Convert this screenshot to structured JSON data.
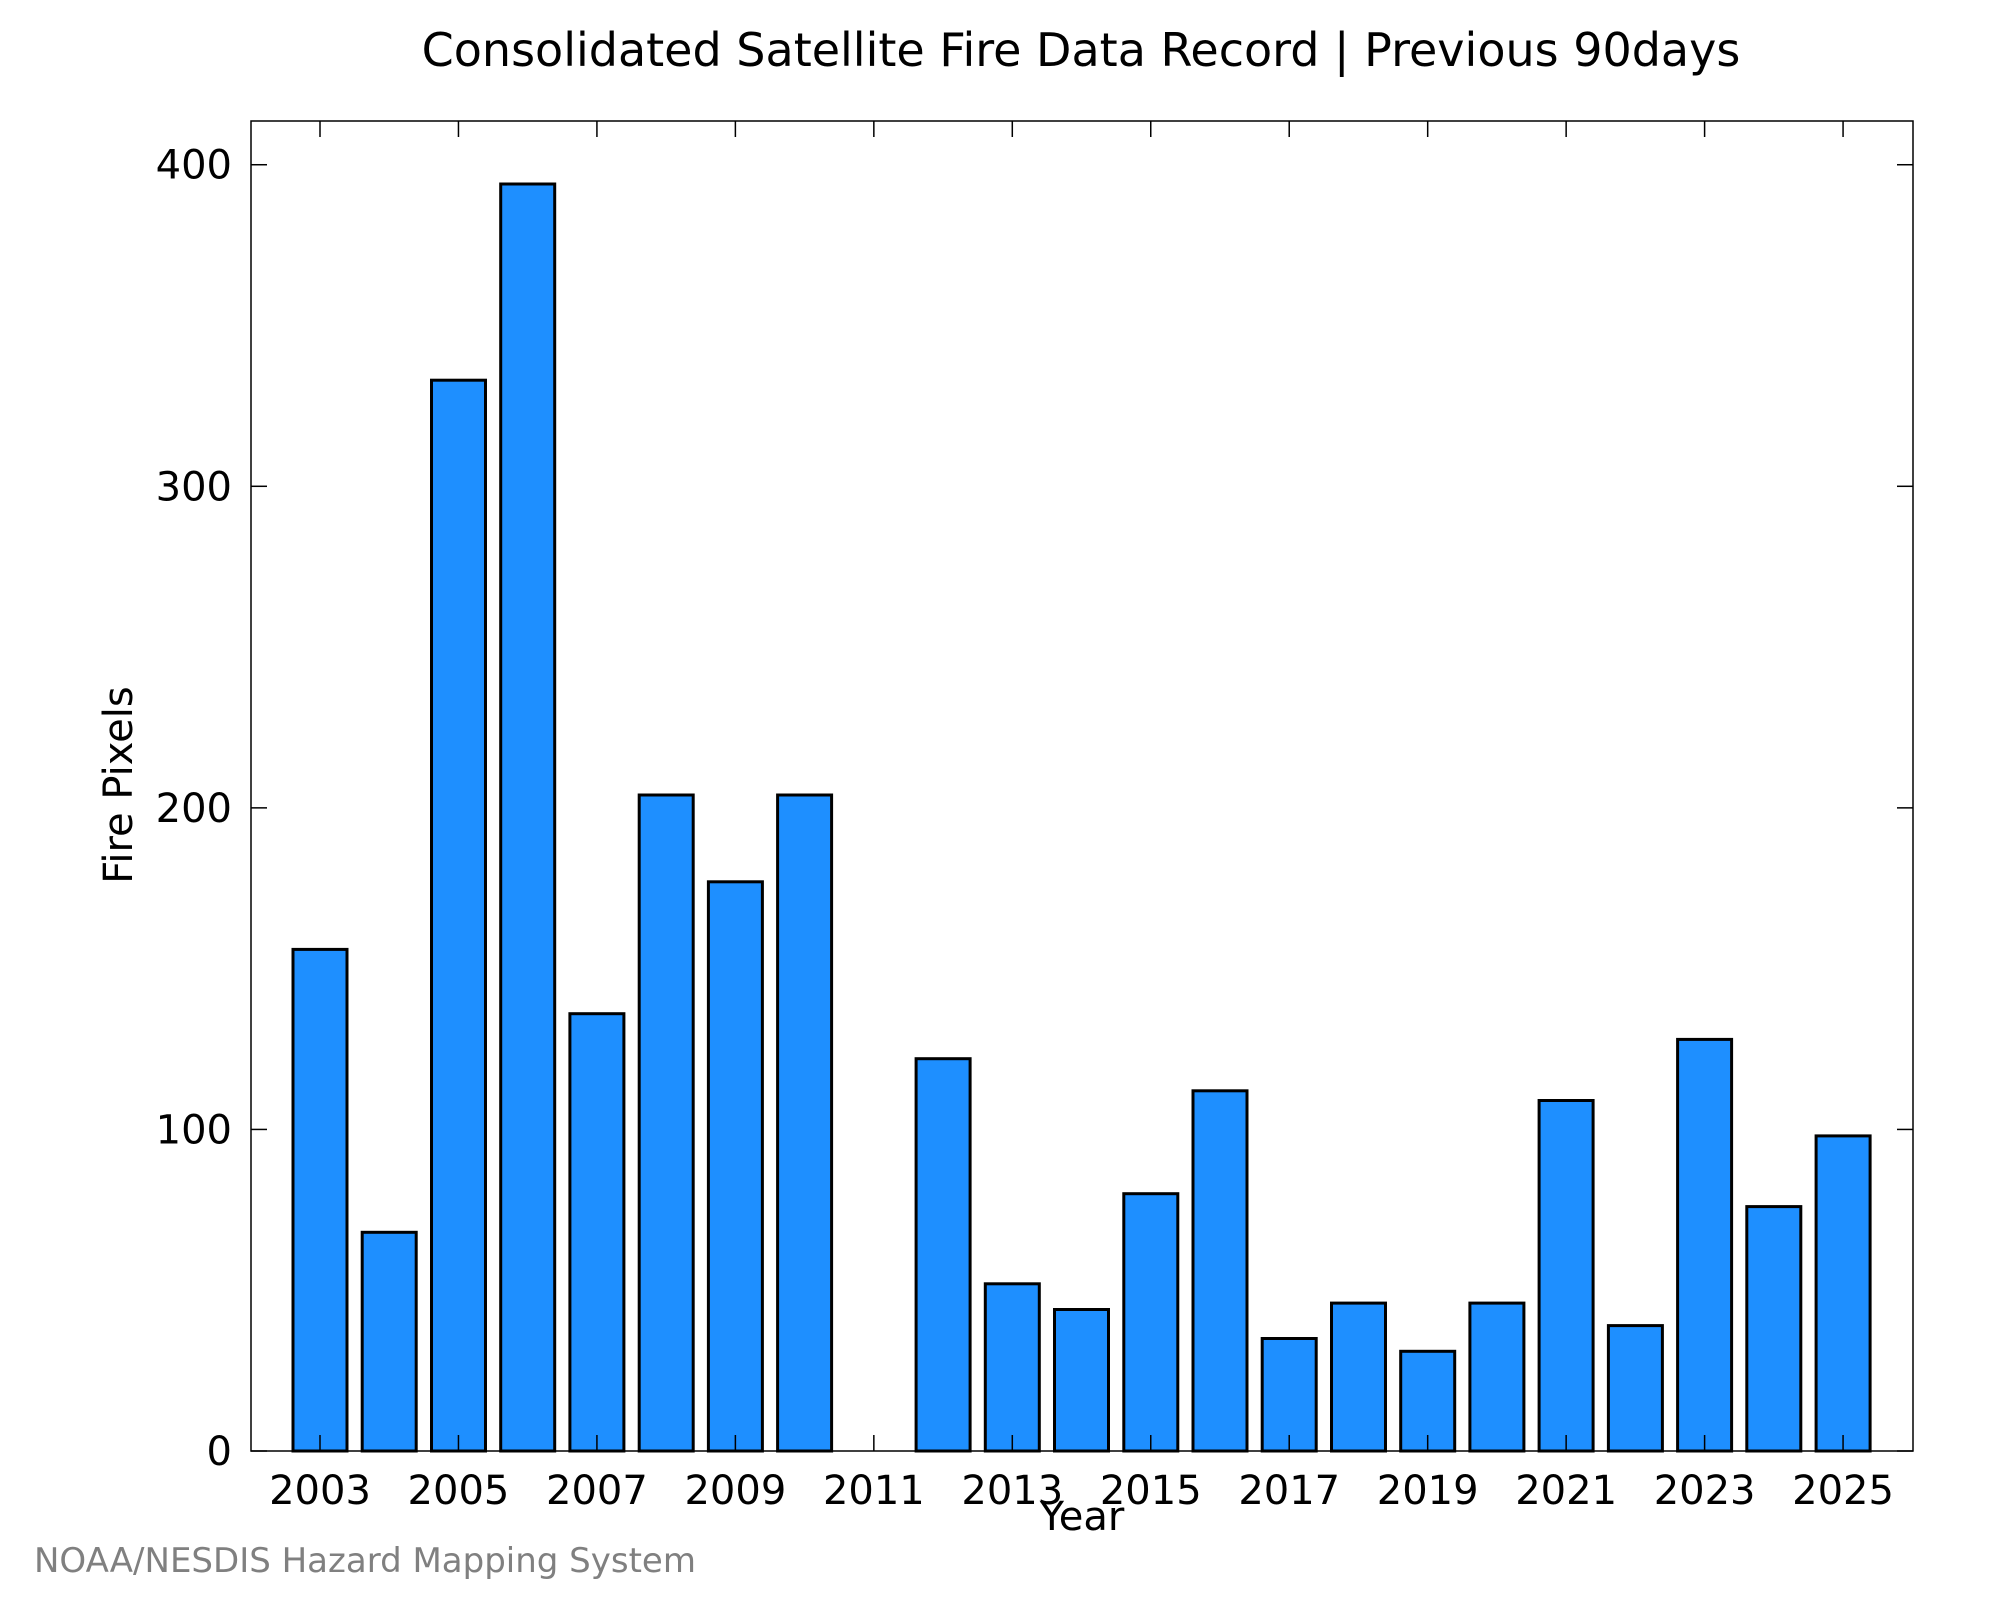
{
  "chart_data": {
    "type": "bar",
    "title": "Consolidated Satellite Fire Data Record | Previous 90days",
    "xlabel": "Year",
    "ylabel": "Fire Pixels",
    "categories": [
      "2003",
      "2004",
      "2005",
      "2006",
      "2007",
      "2008",
      "2009",
      "2010",
      "2011",
      "2012",
      "2013",
      "2014",
      "2015",
      "2016",
      "2017",
      "2018",
      "2019",
      "2020",
      "2021",
      "2022",
      "2023",
      "2024",
      "2025"
    ],
    "values": [
      156,
      68,
      333,
      394,
      136,
      204,
      177,
      204,
      0,
      122,
      52,
      44,
      80,
      112,
      35,
      46,
      31,
      46,
      109,
      39,
      128,
      76,
      98
    ],
    "x_tick_labels": [
      "2003",
      "2005",
      "2007",
      "2009",
      "2011",
      "2013",
      "2015",
      "2017",
      "2019",
      "2021",
      "2023",
      "2025"
    ],
    "y_ticks": [
      0,
      100,
      200,
      300,
      400
    ],
    "y_tick_labels": [
      "0",
      "100",
      "200",
      "300",
      "400"
    ],
    "ylim": [
      0,
      413.6
    ],
    "grid": false,
    "bar_color": "#1E8FFF",
    "edge_color": "#000000"
  },
  "credit": "NOAA/NESDIS Hazard Mapping System",
  "credit_color": "#808080"
}
